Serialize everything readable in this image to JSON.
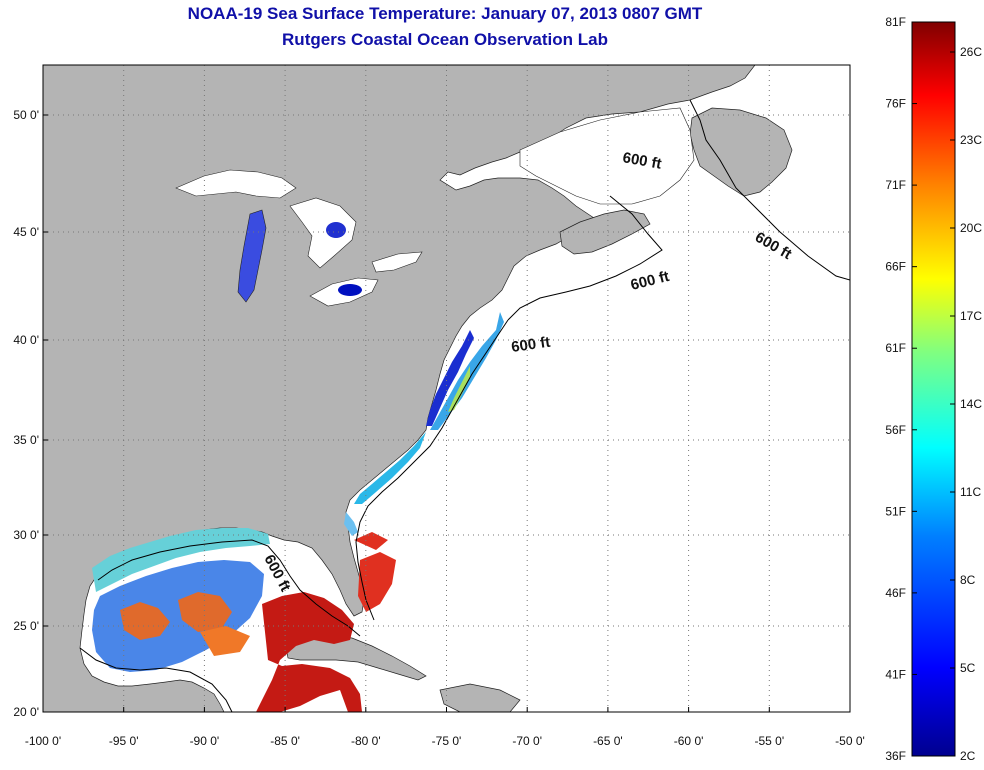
{
  "title_line1": "NOAA-19 Sea Surface Temperature:  January 07, 2013 0807 GMT",
  "title_line2": "Rutgers Coastal Ocean Observation Lab",
  "map": {
    "lon_ticks": [
      "-100 0'",
      "-95 0'",
      "-90 0'",
      "-85 0'",
      "-80 0'",
      "-75 0'",
      "-70 0'",
      "-65 0'",
      "-60 0'",
      "-55 0'",
      "-50 0'"
    ],
    "lat_ticks": [
      "20 0'",
      "25 0'",
      "30 0'",
      "35 0'",
      "40 0'",
      "45 0'",
      "50 0'"
    ],
    "contour_labels": [
      "600 ft",
      "600 ft",
      "600 ft",
      "600 ft",
      "600 ft"
    ],
    "colors": {
      "land": "#b4b4b4",
      "ocean": "#ffffff",
      "grid": "#777777"
    }
  },
  "colorbar": {
    "fahrenheit_labels": [
      "81F",
      "76F",
      "71F",
      "66F",
      "61F",
      "56F",
      "51F",
      "46F",
      "41F",
      "36F"
    ],
    "celsius_labels": [
      "26C",
      "23C",
      "20C",
      "17C",
      "14C",
      "11C",
      "8C",
      "5C",
      "2C"
    ],
    "gradient": [
      "#00008f",
      "#0000ff",
      "#0080ff",
      "#00ffff",
      "#80ff80",
      "#ffff00",
      "#ff8000",
      "#ff0000",
      "#800000"
    ]
  }
}
